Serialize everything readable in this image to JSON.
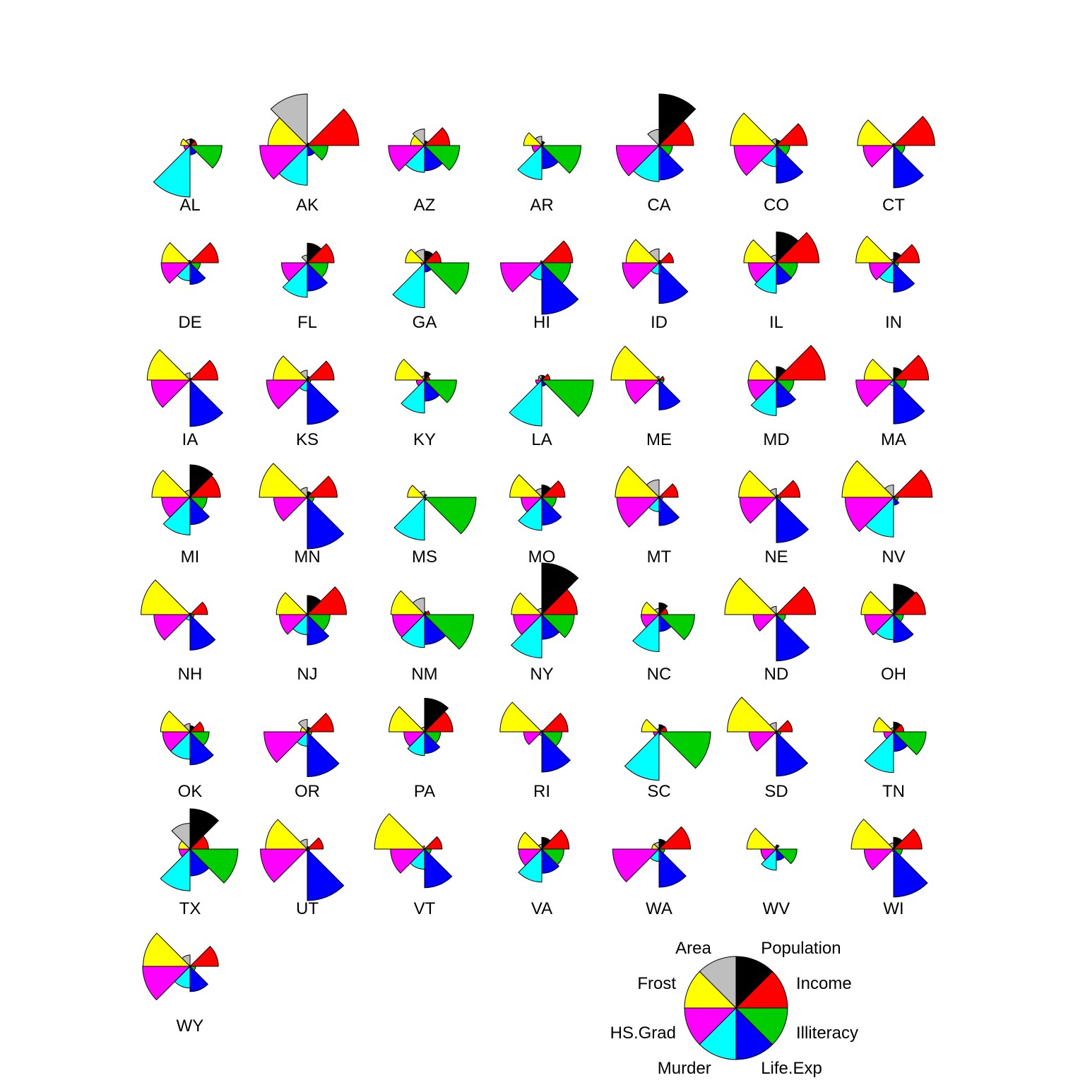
{
  "chart_data": {
    "type": "star-segments",
    "variables": [
      "Income",
      "Population",
      "Area",
      "Frost",
      "HS.Grad",
      "Murder",
      "Life.Exp",
      "Illiteracy"
    ],
    "colors": {
      "Income": "#ff0000",
      "Population": "#000000",
      "Area": "#bebebe",
      "Frost": "#ffff00",
      "HS.Grad": "#ff00ff",
      "Murder": "#00ffff",
      "Life.Exp": "#0000ff",
      "Illiteracy": "#00cd00"
    },
    "value_scale": "0 to 1 (relative segment radius)",
    "states": [
      {
        "name": "AL",
        "values": [
          0.13,
          0.13,
          0.12,
          0.18,
          0.12,
          1.0,
          0.18,
          0.62
        ]
      },
      {
        "name": "AK",
        "values": [
          1.0,
          0.05,
          1.0,
          0.76,
          0.92,
          0.77,
          0.2,
          0.4
        ]
      },
      {
        "name": "AZ",
        "values": [
          0.49,
          0.09,
          0.32,
          0.27,
          0.7,
          0.52,
          0.49,
          0.68
        ]
      },
      {
        "name": "AR",
        "values": [
          0.03,
          0.08,
          0.18,
          0.35,
          0.19,
          0.66,
          0.45,
          0.76
        ]
      },
      {
        "name": "CA",
        "values": [
          0.67,
          1.0,
          0.31,
          0.02,
          0.83,
          0.7,
          0.67,
          0.26
        ]
      },
      {
        "name": "CO",
        "values": [
          0.6,
          0.11,
          0.13,
          0.89,
          0.82,
          0.41,
          0.73,
          0.26
        ]
      },
      {
        "name": "CT",
        "values": [
          0.8,
          0.04,
          0.03,
          0.7,
          0.59,
          0.02,
          0.82,
          0.22
        ]
      },
      {
        "name": "DE",
        "values": [
          0.55,
          0.03,
          0.05,
          0.55,
          0.56,
          0.35,
          0.42,
          0.2
        ]
      },
      {
        "name": "FL",
        "values": [
          0.52,
          0.38,
          0.15,
          0.01,
          0.5,
          0.67,
          0.55,
          0.4
        ]
      },
      {
        "name": "GA",
        "values": [
          0.32,
          0.23,
          0.26,
          0.37,
          0.07,
          0.87,
          0.18,
          0.86
        ]
      },
      {
        "name": "HI",
        "values": [
          0.6,
          0.0,
          0.04,
          0.0,
          0.8,
          0.33,
          1.0,
          0.56
        ]
      },
      {
        "name": "ID",
        "values": [
          0.28,
          0.05,
          0.27,
          0.64,
          0.71,
          0.22,
          0.79,
          0.05
        ]
      },
      {
        "name": "IL",
        "values": [
          0.83,
          0.6,
          0.15,
          0.63,
          0.54,
          0.59,
          0.42,
          0.41
        ]
      },
      {
        "name": "IN",
        "values": [
          0.5,
          0.2,
          0.07,
          0.73,
          0.47,
          0.39,
          0.57,
          0.1
        ]
      },
      {
        "name": "IA",
        "values": [
          0.54,
          0.04,
          0.14,
          0.83,
          0.75,
          0.02,
          0.9,
          0.02
        ]
      },
      {
        "name": "KS",
        "values": [
          0.52,
          0.07,
          0.19,
          0.66,
          0.79,
          0.21,
          0.86,
          0.07
        ]
      },
      {
        "name": "KY",
        "values": [
          0.1,
          0.16,
          0.08,
          0.57,
          0.16,
          0.64,
          0.41,
          0.62
        ]
      },
      {
        "name": "LA",
        "values": [
          0.16,
          0.09,
          0.09,
          0.07,
          0.12,
          0.89,
          0.12,
          1.0
        ]
      },
      {
        "name": "ME",
        "values": [
          0.1,
          0.02,
          0.07,
          0.93,
          0.65,
          0.08,
          0.58,
          0.09
        ]
      },
      {
        "name": "MD",
        "values": [
          0.95,
          0.26,
          0.03,
          0.54,
          0.55,
          0.69,
          0.53,
          0.34
        ]
      },
      {
        "name": "MA",
        "values": [
          0.68,
          0.24,
          0.02,
          0.57,
          0.73,
          0.11,
          0.85,
          0.25
        ]
      },
      {
        "name": "MI",
        "values": [
          0.59,
          0.63,
          0.14,
          0.74,
          0.55,
          0.73,
          0.53,
          0.33
        ]
      },
      {
        "name": "MN",
        "values": [
          0.58,
          0.11,
          0.19,
          0.93,
          0.65,
          0.02,
          1.0,
          0.13
        ]
      },
      {
        "name": "MS",
        "values": [
          0.0,
          0.06,
          0.12,
          0.33,
          0.0,
          0.83,
          0.06,
          1.0
        ]
      },
      {
        "name": "MO",
        "values": [
          0.45,
          0.24,
          0.17,
          0.62,
          0.4,
          0.64,
          0.54,
          0.28
        ]
      },
      {
        "name": "MT",
        "values": [
          0.37,
          0.02,
          0.34,
          0.85,
          0.82,
          0.28,
          0.55,
          0.07
        ]
      },
      {
        "name": "NE",
        "values": [
          0.46,
          0.05,
          0.17,
          0.73,
          0.71,
          0.02,
          0.88,
          0.09
        ]
      },
      {
        "name": "NV",
        "values": [
          0.75,
          0.02,
          0.24,
          1.0,
          0.94,
          0.77,
          0.15,
          0.09
        ]
      },
      {
        "name": "NH",
        "values": [
          0.34,
          0.02,
          0.03,
          0.95,
          0.7,
          0.11,
          0.69,
          0.08
        ]
      },
      {
        "name": "NJ",
        "values": [
          0.76,
          0.37,
          0.02,
          0.6,
          0.54,
          0.39,
          0.59,
          0.44
        ]
      },
      {
        "name": "NM",
        "values": [
          0.1,
          0.06,
          0.32,
          0.65,
          0.62,
          0.64,
          0.58,
          0.95
        ]
      },
      {
        "name": "NY",
        "values": [
          0.69,
          1.0,
          0.12,
          0.59,
          0.55,
          0.84,
          0.48,
          0.63
        ]
      },
      {
        "name": "NC",
        "values": [
          0.17,
          0.23,
          0.12,
          0.34,
          0.35,
          0.72,
          0.33,
          0.69
        ]
      },
      {
        "name": "ND",
        "values": [
          0.76,
          0.02,
          0.16,
          1.0,
          0.45,
          0.03,
          0.9,
          0.18
        ]
      },
      {
        "name": "OH",
        "values": [
          0.62,
          0.59,
          0.1,
          0.63,
          0.56,
          0.49,
          0.54,
          0.19
        ]
      },
      {
        "name": "OK",
        "values": [
          0.27,
          0.12,
          0.16,
          0.57,
          0.53,
          0.53,
          0.64,
          0.37
        ]
      },
      {
        "name": "OR",
        "values": [
          0.51,
          0.09,
          0.24,
          0.13,
          0.84,
          0.28,
          0.87,
          0.09
        ]
      },
      {
        "name": "PA",
        "values": [
          0.55,
          0.65,
          0.09,
          0.69,
          0.4,
          0.46,
          0.42,
          0.31
        ]
      },
      {
        "name": "RI",
        "values": [
          0.51,
          0.03,
          0.01,
          0.81,
          0.35,
          0.07,
          0.78,
          0.39
        ]
      },
      {
        "name": "SC",
        "values": [
          0.15,
          0.14,
          0.06,
          0.34,
          0.11,
          0.94,
          0.06,
          1.0
        ]
      },
      {
        "name": "SD",
        "values": [
          0.31,
          0.02,
          0.18,
          0.95,
          0.53,
          0.04,
          0.86,
          0.09
        ]
      },
      {
        "name": "TN",
        "values": [
          0.2,
          0.19,
          0.08,
          0.39,
          0.19,
          0.79,
          0.38,
          0.63
        ]
      },
      {
        "name": "TX",
        "values": [
          0.36,
          0.78,
          0.5,
          0.22,
          0.21,
          0.81,
          0.52,
          0.93
        ]
      },
      {
        "name": "UT",
        "values": [
          0.31,
          0.05,
          0.19,
          0.81,
          0.91,
          0.04,
          1.0,
          0.05
        ]
      },
      {
        "name": "VT",
        "values": [
          0.34,
          0.01,
          0.06,
          0.97,
          0.66,
          0.39,
          0.75,
          0.13
        ]
      },
      {
        "name": "VA",
        "values": [
          0.53,
          0.23,
          0.09,
          0.46,
          0.45,
          0.64,
          0.47,
          0.43
        ]
      },
      {
        "name": "WA",
        "values": [
          0.61,
          0.19,
          0.13,
          0.14,
          0.9,
          0.24,
          0.74,
          0.11
        ]
      },
      {
        "name": "WV",
        "values": [
          0.01,
          0.08,
          0.05,
          0.57,
          0.3,
          0.41,
          0.22,
          0.4
        ]
      },
      {
        "name": "WI",
        "values": [
          0.55,
          0.23,
          0.12,
          0.82,
          0.57,
          0.05,
          0.93,
          0.17
        ]
      },
      {
        "name": "WY",
        "values": [
          0.55,
          0.01,
          0.22,
          0.91,
          0.92,
          0.42,
          0.49,
          0.11
        ]
      }
    ],
    "key": {
      "labels": [
        "Income",
        "Population",
        "Area",
        "Frost",
        "HS.Grad",
        "Murder",
        "Life.Exp",
        "Illiteracy"
      ]
    }
  }
}
